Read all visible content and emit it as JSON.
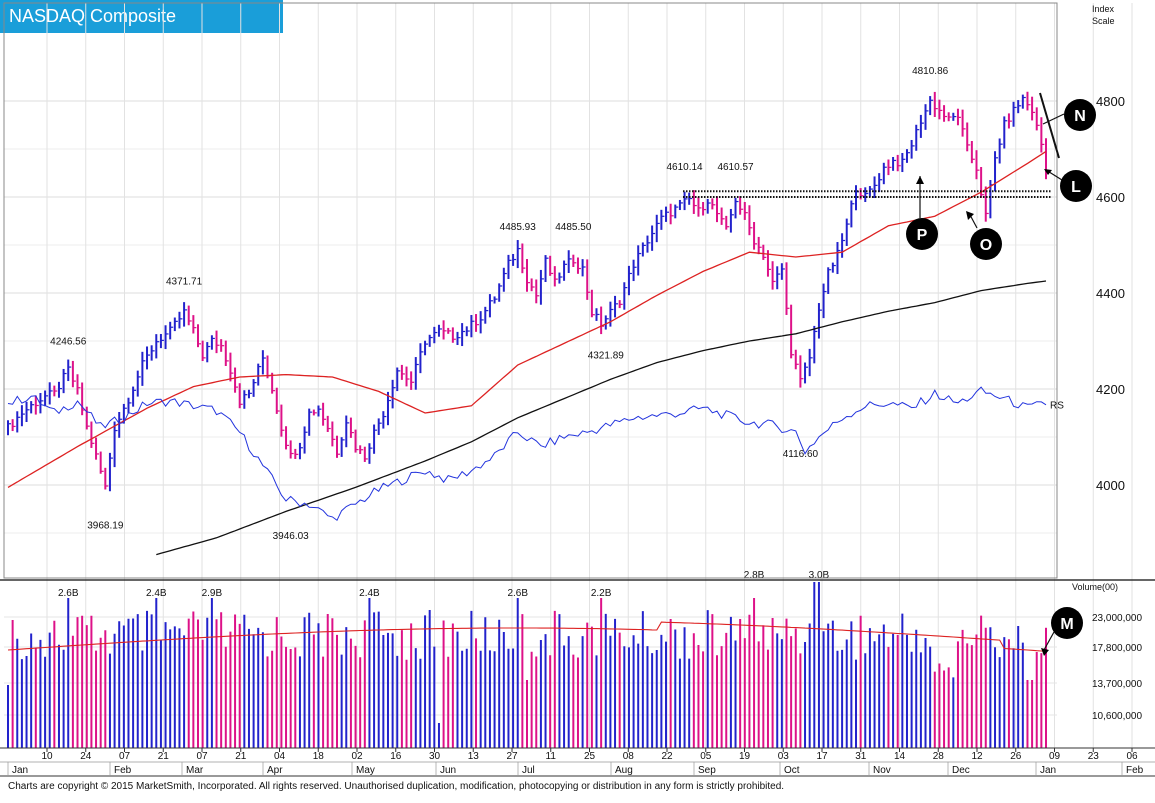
{
  "header": {
    "title": "NASDAQ Composite"
  },
  "footer": {
    "copyright": "Charts are copyright © 2015 MarketSmith, Incorporated. All rights reserved. Unauthorised duplication, modification, photocopying or distribution in any form is strictly prohibited."
  },
  "colors": {
    "up": "#2222cc",
    "down": "#dd1188",
    "ma_short": "#dd2222",
    "ma_long": "#111111",
    "rs_line": "#2233dd",
    "grid": "#dddddd",
    "badge": "#1a9ed9"
  },
  "chart_data": [
    {
      "type": "bar",
      "title": "NASDAQ Composite",
      "ylabel": "Index Scale",
      "ylabel_lines": [
        "Index",
        "Scale"
      ],
      "y_ticks": [
        4000,
        4200,
        4400,
        4600,
        4800
      ],
      "ylim": [
        3860,
        4880
      ],
      "grid": true,
      "x_date_ticks": [
        "10",
        "24",
        "07",
        "21",
        "07",
        "21",
        "04",
        "18",
        "02",
        "16",
        "30",
        "13",
        "27",
        "11",
        "25",
        "08",
        "22",
        "05",
        "19",
        "03",
        "17",
        "31",
        "14",
        "28",
        "12",
        "26",
        "09",
        "23",
        "06"
      ],
      "month_labels": [
        "Jan",
        "Feb",
        "Mar",
        "Apr",
        "May",
        "Jun",
        "Jul",
        "Aug",
        "Sep",
        "Oct",
        "Nov",
        "Dec",
        "Jan",
        "Feb"
      ],
      "price_anchors": [
        [
          0,
          4120
        ],
        [
          3,
          4150
        ],
        [
          5,
          4165
        ],
        [
          8,
          4185
        ],
        [
          10,
          4190
        ],
        [
          13,
          4240
        ],
        [
          15,
          4195
        ],
        [
          17,
          4120
        ],
        [
          19,
          4060
        ],
        [
          21,
          3995
        ],
        [
          23,
          4120
        ],
        [
          26,
          4180
        ],
        [
          29,
          4250
        ],
        [
          32,
          4300
        ],
        [
          35,
          4320
        ],
        [
          38,
          4360
        ],
        [
          40,
          4320
        ],
        [
          42,
          4270
        ],
        [
          44,
          4300
        ],
        [
          46,
          4290
        ],
        [
          48,
          4240
        ],
        [
          50,
          4175
        ],
        [
          52,
          4190
        ],
        [
          55,
          4265
        ],
        [
          57,
          4200
        ],
        [
          59,
          4120
        ],
        [
          61,
          4060
        ],
        [
          63,
          4085
        ],
        [
          65,
          4150
        ],
        [
          67,
          4160
        ],
        [
          69,
          4120
        ],
        [
          71,
          4070
        ],
        [
          73,
          4135
        ],
        [
          75,
          4080
        ],
        [
          77,
          4060
        ],
        [
          79,
          4110
        ],
        [
          81,
          4150
        ],
        [
          84,
          4240
        ],
        [
          87,
          4215
        ],
        [
          90,
          4300
        ],
        [
          93,
          4320
        ],
        [
          96,
          4310
        ],
        [
          99,
          4325
        ],
        [
          102,
          4350
        ],
        [
          105,
          4390
        ],
        [
          108,
          4460
        ],
        [
          110,
          4490
        ],
        [
          112,
          4430
        ],
        [
          114,
          4395
        ],
        [
          116,
          4465
        ],
        [
          118,
          4420
        ],
        [
          120,
          4455
        ],
        [
          122,
          4470
        ],
        [
          124,
          4450
        ],
        [
          126,
          4360
        ],
        [
          128,
          4335
        ],
        [
          130,
          4360
        ],
        [
          132,
          4385
        ],
        [
          135,
          4460
        ],
        [
          138,
          4510
        ],
        [
          141,
          4555
        ],
        [
          144,
          4575
        ],
        [
          147,
          4595
        ],
        [
          149,
          4570
        ],
        [
          151,
          4595
        ],
        [
          153,
          4565
        ],
        [
          155,
          4530
        ],
        [
          157,
          4595
        ],
        [
          159,
          4560
        ],
        [
          161,
          4510
        ],
        [
          163,
          4480
        ],
        [
          165,
          4420
        ],
        [
          167,
          4450
        ],
        [
          169,
          4280
        ],
        [
          171,
          4215
        ],
        [
          173,
          4265
        ],
        [
          175,
          4370
        ],
        [
          177,
          4440
        ],
        [
          179,
          4480
        ],
        [
          181,
          4540
        ],
        [
          183,
          4620
        ],
        [
          185,
          4600
        ],
        [
          187,
          4625
        ],
        [
          189,
          4660
        ],
        [
          191,
          4675
        ],
        [
          193,
          4670
        ],
        [
          195,
          4710
        ],
        [
          197,
          4760
        ],
        [
          199,
          4800
        ],
        [
          201,
          4780
        ],
        [
          203,
          4760
        ],
        [
          205,
          4770
        ],
        [
          207,
          4700
        ],
        [
          209,
          4660
        ],
        [
          211,
          4560
        ],
        [
          213,
          4680
        ],
        [
          215,
          4750
        ],
        [
          217,
          4780
        ],
        [
          219,
          4805
        ],
        [
          221,
          4780
        ],
        [
          223,
          4710
        ],
        [
          224,
          4650
        ]
      ],
      "annotations": [
        {
          "label": "4246.56",
          "bar": 13,
          "value": 4246.56,
          "pos": "above"
        },
        {
          "label": "3968.19",
          "bar": 21,
          "value": 3968.19,
          "pos": "below"
        },
        {
          "label": "4371.71",
          "bar": 38,
          "value": 4371.71,
          "pos": "above"
        },
        {
          "label": "3946.03",
          "bar": 61,
          "value": 3946.03,
          "pos": "below"
        },
        {
          "label": "4485.93",
          "bar": 110,
          "value": 4485.93,
          "pos": "above"
        },
        {
          "label": "4485.50",
          "bar": 122,
          "value": 4485.5,
          "pos": "above"
        },
        {
          "label": "4321.89",
          "bar": 129,
          "value": 4321.89,
          "pos": "below"
        },
        {
          "label": "4610.14",
          "bar": 146,
          "value": 4610.14,
          "pos": "above"
        },
        {
          "label": "4610.57",
          "bar": 157,
          "value": 4610.57,
          "pos": "above"
        },
        {
          "label": "4116.60",
          "bar": 171,
          "value": 4116.6,
          "pos": "below"
        },
        {
          "label": "4810.86",
          "bar": 199,
          "value": 4810.86,
          "pos": "above"
        }
      ],
      "ma_short_anchors": [
        [
          0,
          3995
        ],
        [
          15,
          4080
        ],
        [
          30,
          4160
        ],
        [
          40,
          4205
        ],
        [
          50,
          4225
        ],
        [
          60,
          4230
        ],
        [
          70,
          4225
        ],
        [
          80,
          4195
        ],
        [
          90,
          4150
        ],
        [
          100,
          4165
        ],
        [
          110,
          4250
        ],
        [
          120,
          4295
        ],
        [
          130,
          4340
        ],
        [
          140,
          4395
        ],
        [
          150,
          4445
        ],
        [
          160,
          4485
        ],
        [
          170,
          4475
        ],
        [
          180,
          4485
        ],
        [
          190,
          4540
        ],
        [
          200,
          4560
        ],
        [
          210,
          4610
        ],
        [
          220,
          4670
        ],
        [
          224,
          4695
        ]
      ],
      "ma_long_anchors": [
        [
          32,
          3855
        ],
        [
          45,
          3890
        ],
        [
          60,
          3945
        ],
        [
          75,
          3995
        ],
        [
          90,
          4050
        ],
        [
          100,
          4090
        ],
        [
          110,
          4140
        ],
        [
          120,
          4180
        ],
        [
          130,
          4220
        ],
        [
          140,
          4255
        ],
        [
          150,
          4280
        ],
        [
          160,
          4300
        ],
        [
          170,
          4315
        ],
        [
          180,
          4340
        ],
        [
          190,
          4362
        ],
        [
          200,
          4380
        ],
        [
          210,
          4405
        ],
        [
          220,
          4420
        ],
        [
          224,
          4425
        ]
      ],
      "rs_label": "RS",
      "rs_anchors": [
        [
          0,
          4170
        ],
        [
          5,
          4185
        ],
        [
          10,
          4150
        ],
        [
          15,
          4175
        ],
        [
          20,
          4120
        ],
        [
          25,
          4140
        ],
        [
          30,
          4170
        ],
        [
          35,
          4175
        ],
        [
          40,
          4165
        ],
        [
          45,
          4155
        ],
        [
          50,
          4110
        ],
        [
          55,
          4040
        ],
        [
          60,
          3970
        ],
        [
          65,
          3960
        ],
        [
          70,
          3930
        ],
        [
          75,
          3960
        ],
        [
          80,
          3990
        ],
        [
          85,
          4010
        ],
        [
          90,
          4030
        ],
        [
          95,
          4010
        ],
        [
          100,
          4030
        ],
        [
          105,
          4060
        ],
        [
          110,
          4110
        ],
        [
          115,
          4080
        ],
        [
          120,
          4100
        ],
        [
          125,
          4110
        ],
        [
          130,
          4125
        ],
        [
          135,
          4140
        ],
        [
          140,
          4145
        ],
        [
          145,
          4150
        ],
        [
          150,
          4160
        ],
        [
          155,
          4145
        ],
        [
          160,
          4130
        ],
        [
          165,
          4125
        ],
        [
          170,
          4110
        ],
        [
          172,
          4070
        ],
        [
          175,
          4100
        ],
        [
          180,
          4140
        ],
        [
          185,
          4165
        ],
        [
          190,
          4170
        ],
        [
          195,
          4160
        ],
        [
          200,
          4190
        ],
        [
          205,
          4170
        ],
        [
          210,
          4195
        ],
        [
          215,
          4180
        ],
        [
          220,
          4160
        ],
        [
          224,
          4170
        ]
      ],
      "markers": [
        {
          "label": "N",
          "note": "near 4800"
        },
        {
          "label": "L",
          "note": "near 4600"
        },
        {
          "label": "P",
          "note": "below 4600 band"
        },
        {
          "label": "O",
          "note": "below 4600 band"
        }
      ],
      "resistance_band": [
        4600,
        4612
      ]
    },
    {
      "type": "bar",
      "ylabel": "Volume(00)",
      "y_ticks": [
        "10,600,000",
        "13,700,000",
        "17,800,000",
        "23,000,000"
      ],
      "volume_labels": [
        {
          "label": "2.6B",
          "bar": 13
        },
        {
          "label": "2.4B",
          "bar": 32
        },
        {
          "label": "2.9B",
          "bar": 44
        },
        {
          "label": "2.4B",
          "bar": 78
        },
        {
          "label": "2.6B",
          "bar": 110
        },
        {
          "label": "2.2B",
          "bar": 128
        },
        {
          "label": "2.8B",
          "bar": 161
        },
        {
          "label": "3.0B",
          "bar": 175
        }
      ],
      "marker": {
        "label": "M"
      }
    }
  ]
}
